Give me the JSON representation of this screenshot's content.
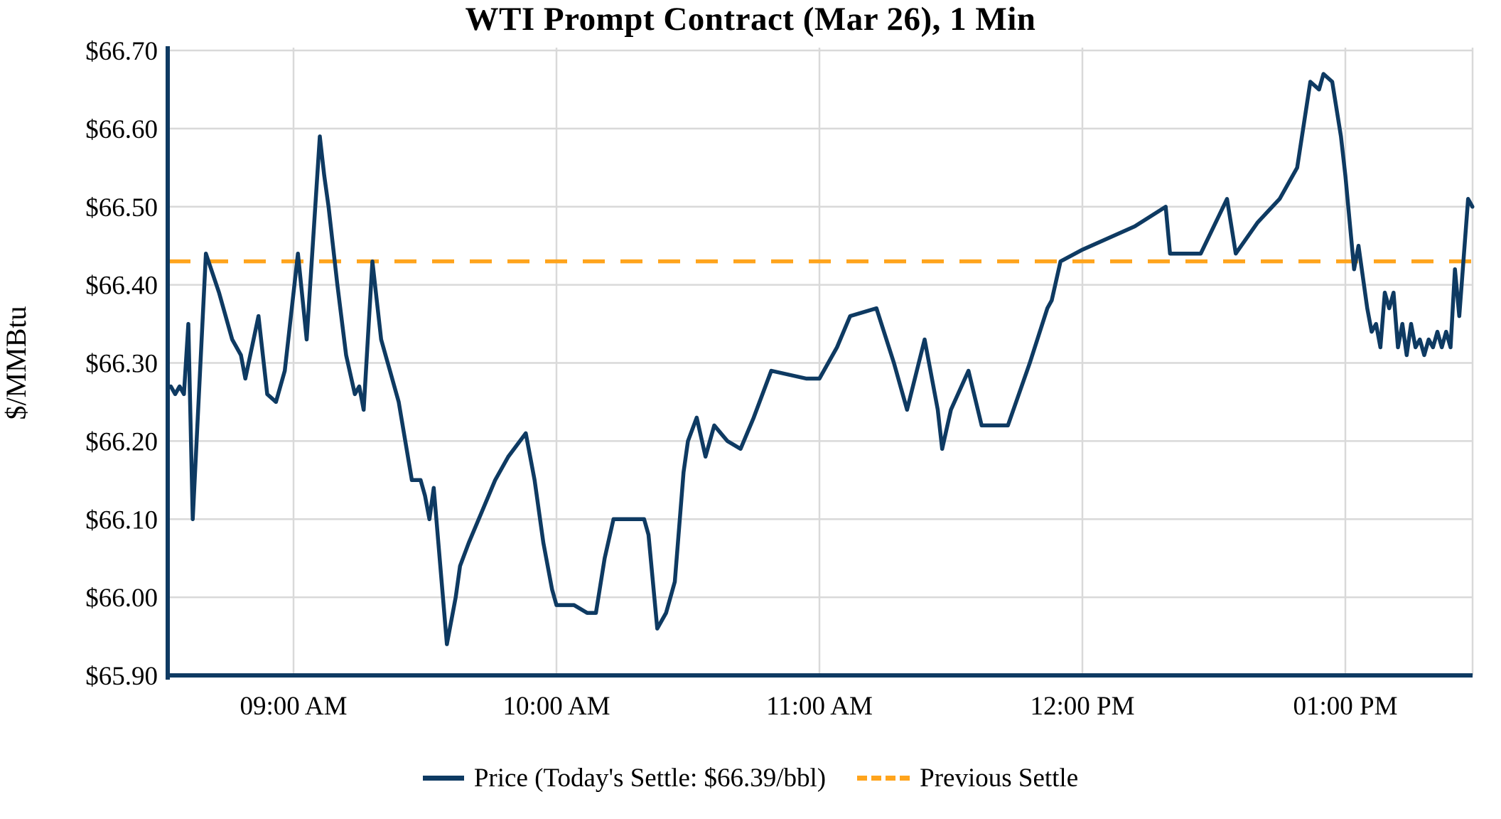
{
  "title": "WTI Prompt Contract (Mar 26), 1 Min",
  "y_axis": {
    "label": "$/MMBtu",
    "ticks": [
      {
        "label": "$66.70",
        "value": 66.7
      },
      {
        "label": "$66.60",
        "value": 66.6
      },
      {
        "label": "$66.50",
        "value": 66.5
      },
      {
        "label": "$66.40",
        "value": 66.4
      },
      {
        "label": "$66.30",
        "value": 66.3
      },
      {
        "label": "$66.20",
        "value": 66.2
      },
      {
        "label": "$66.10",
        "value": 66.1
      },
      {
        "label": "$66.00",
        "value": 66.0
      },
      {
        "label": "$65.90",
        "value": 65.9
      }
    ]
  },
  "x_axis": {
    "ticks": [
      {
        "label": "09:00 AM",
        "time": "09:00"
      },
      {
        "label": "10:00 AM",
        "time": "10:00"
      },
      {
        "label": "11:00 AM",
        "time": "11:00"
      },
      {
        "label": "12:00 PM",
        "time": "12:00"
      },
      {
        "label": "01:00 PM",
        "time": "13:00"
      }
    ]
  },
  "legend": {
    "price_label": "Price (Today's Settle: $66.39/bbl)",
    "previous_settle_label": "Previous Settle"
  },
  "colors": {
    "price_line": "#0e3a62",
    "previous_settle_line": "#ffa41c",
    "grid": "#d9d9d9",
    "axis": "#0e3a62",
    "text": "#000000"
  },
  "chart_data": {
    "type": "line",
    "title": "WTI Prompt Contract (Mar 26), 1 Min",
    "xlabel": "",
    "ylabel": "$/MMBtu",
    "ylim": [
      65.9,
      66.7
    ],
    "x_range": [
      "08:31",
      "13:29"
    ],
    "grid": true,
    "legend_position": "bottom",
    "today_settle": 66.39,
    "previous_settle": 66.43,
    "series": [
      {
        "name": "Price (Today's Settle: $66.39/bbl)",
        "style": "solid",
        "points": [
          [
            "08:32",
            66.27
          ],
          [
            "08:33",
            66.26
          ],
          [
            "08:34",
            66.27
          ],
          [
            "08:35",
            66.26
          ],
          [
            "08:36",
            66.35
          ],
          [
            "08:37",
            66.1
          ],
          [
            "08:40",
            66.44
          ],
          [
            "08:43",
            66.39
          ],
          [
            "08:46",
            66.33
          ],
          [
            "08:48",
            66.31
          ],
          [
            "08:49",
            66.28
          ],
          [
            "08:52",
            66.36
          ],
          [
            "08:54",
            66.26
          ],
          [
            "08:56",
            66.25
          ],
          [
            "08:58",
            66.29
          ],
          [
            "09:01",
            66.44
          ],
          [
            "09:03",
            66.33
          ],
          [
            "09:06",
            66.59
          ],
          [
            "09:07",
            66.54
          ],
          [
            "09:08",
            66.5
          ],
          [
            "09:10",
            66.4
          ],
          [
            "09:12",
            66.31
          ],
          [
            "09:14",
            66.26
          ],
          [
            "09:15",
            66.27
          ],
          [
            "09:16",
            66.24
          ],
          [
            "09:18",
            66.43
          ],
          [
            "09:20",
            66.33
          ],
          [
            "09:22",
            66.29
          ],
          [
            "09:24",
            66.25
          ],
          [
            "09:27",
            66.15
          ],
          [
            "09:29",
            66.15
          ],
          [
            "09:30",
            66.13
          ],
          [
            "09:31",
            66.1
          ],
          [
            "09:32",
            66.14
          ],
          [
            "09:35",
            65.94
          ],
          [
            "09:37",
            66.0
          ],
          [
            "09:38",
            66.04
          ],
          [
            "09:40",
            66.07
          ],
          [
            "09:43",
            66.11
          ],
          [
            "09:46",
            66.15
          ],
          [
            "09:49",
            66.18
          ],
          [
            "09:53",
            66.21
          ],
          [
            "09:55",
            66.15
          ],
          [
            "09:57",
            66.07
          ],
          [
            "09:59",
            66.01
          ],
          [
            "10:00",
            65.99
          ],
          [
            "10:04",
            65.99
          ],
          [
            "10:07",
            65.98
          ],
          [
            "10:09",
            65.98
          ],
          [
            "10:11",
            66.05
          ],
          [
            "10:13",
            66.1
          ],
          [
            "10:16",
            66.1
          ],
          [
            "10:20",
            66.1
          ],
          [
            "10:21",
            66.08
          ],
          [
            "10:23",
            65.96
          ],
          [
            "10:25",
            65.98
          ],
          [
            "10:27",
            66.02
          ],
          [
            "10:29",
            66.16
          ],
          [
            "10:30",
            66.2
          ],
          [
            "10:32",
            66.23
          ],
          [
            "10:34",
            66.18
          ],
          [
            "10:36",
            66.22
          ],
          [
            "10:39",
            66.2
          ],
          [
            "10:42",
            66.19
          ],
          [
            "10:45",
            66.23
          ],
          [
            "10:49",
            66.29
          ],
          [
            "10:53",
            66.285
          ],
          [
            "10:57",
            66.28
          ],
          [
            "11:00",
            66.28
          ],
          [
            "11:04",
            66.32
          ],
          [
            "11:07",
            66.36
          ],
          [
            "11:10",
            66.365
          ],
          [
            "11:13",
            66.37
          ],
          [
            "11:17",
            66.3
          ],
          [
            "11:20",
            66.24
          ],
          [
            "11:24",
            66.33
          ],
          [
            "11:27",
            66.24
          ],
          [
            "11:28",
            66.19
          ],
          [
            "11:30",
            66.24
          ],
          [
            "11:34",
            66.29
          ],
          [
            "11:37",
            66.22
          ],
          [
            "11:43",
            66.22
          ],
          [
            "11:48",
            66.3
          ],
          [
            "11:52",
            66.37
          ],
          [
            "11:53",
            66.38
          ],
          [
            "11:55",
            66.43
          ],
          [
            "12:00",
            66.445
          ],
          [
            "12:06",
            66.46
          ],
          [
            "12:12",
            66.475
          ],
          [
            "12:19",
            66.5
          ],
          [
            "12:20",
            66.44
          ],
          [
            "12:27",
            66.44
          ],
          [
            "12:33",
            66.51
          ],
          [
            "12:35",
            66.44
          ],
          [
            "12:40",
            66.48
          ],
          [
            "12:45",
            66.51
          ],
          [
            "12:49",
            66.55
          ],
          [
            "12:52",
            66.66
          ],
          [
            "12:54",
            66.65
          ],
          [
            "12:55",
            66.67
          ],
          [
            "12:57",
            66.66
          ],
          [
            "12:59",
            66.59
          ],
          [
            "13:00",
            66.54
          ],
          [
            "13:02",
            66.42
          ],
          [
            "13:03",
            66.45
          ],
          [
            "13:05",
            66.37
          ],
          [
            "13:06",
            66.34
          ],
          [
            "13:07",
            66.35
          ],
          [
            "13:08",
            66.32
          ],
          [
            "13:09",
            66.39
          ],
          [
            "13:10",
            66.37
          ],
          [
            "13:11",
            66.39
          ],
          [
            "13:12",
            66.32
          ],
          [
            "13:13",
            66.35
          ],
          [
            "13:14",
            66.31
          ],
          [
            "13:15",
            66.35
          ],
          [
            "13:16",
            66.32
          ],
          [
            "13:17",
            66.33
          ],
          [
            "13:18",
            66.31
          ],
          [
            "13:19",
            66.33
          ],
          [
            "13:20",
            66.32
          ],
          [
            "13:21",
            66.34
          ],
          [
            "13:22",
            66.32
          ],
          [
            "13:23",
            66.34
          ],
          [
            "13:24",
            66.32
          ],
          [
            "13:25",
            66.42
          ],
          [
            "13:26",
            66.36
          ],
          [
            "13:28",
            66.51
          ],
          [
            "13:29",
            66.5
          ]
        ]
      },
      {
        "name": "Previous Settle",
        "style": "dashed",
        "value": 66.43
      }
    ]
  }
}
